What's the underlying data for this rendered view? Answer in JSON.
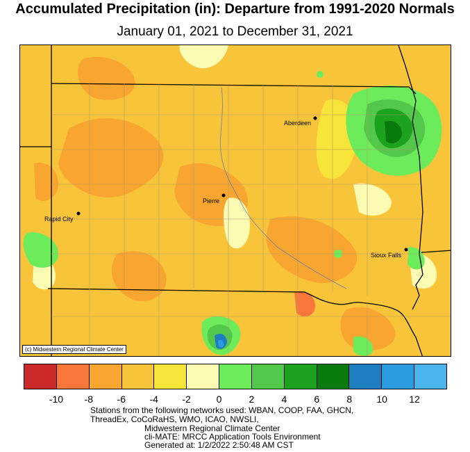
{
  "title": "Accumulated Precipitation (in): Departure from 1991-2020 Normals",
  "subtitle": "January 01, 2021 to December 31, 2021",
  "map": {
    "credit": "(c) Midwestern Regional Climate Center",
    "cities": [
      {
        "name": "Aberdeen"
      },
      {
        "name": "Pierre"
      },
      {
        "name": "Rapid City"
      },
      {
        "name": "Sioux Falls"
      }
    ]
  },
  "legend": {
    "colors": [
      "#cc2a2a",
      "#f8763a",
      "#f8a630",
      "#f8c53a",
      "#f8e53a",
      "#fbfbb4",
      "#6ceb5b",
      "#52c84b",
      "#1ca21c",
      "#077a0b",
      "#1d7ec0",
      "#2b9ce0",
      "#4ab4ee"
    ],
    "ticks": [
      "-10",
      "-8",
      "-6",
      "-4",
      "-2",
      "0",
      "2",
      "4",
      "6",
      "8",
      "10",
      "12"
    ]
  },
  "footer": {
    "line1": "Stations from the following networks used: WBAN, COOP, FAA, GHCN,",
    "line2": "ThreadEx, CoCoRaHS, WMO, ICAO, NWSLI,",
    "line3": "Midwestern Regional Climate Center",
    "line4": "cli-MATE: MRCC Application Tools Environment",
    "line5": "Generated at: 1/2/2022 2:50:48 AM CST"
  }
}
